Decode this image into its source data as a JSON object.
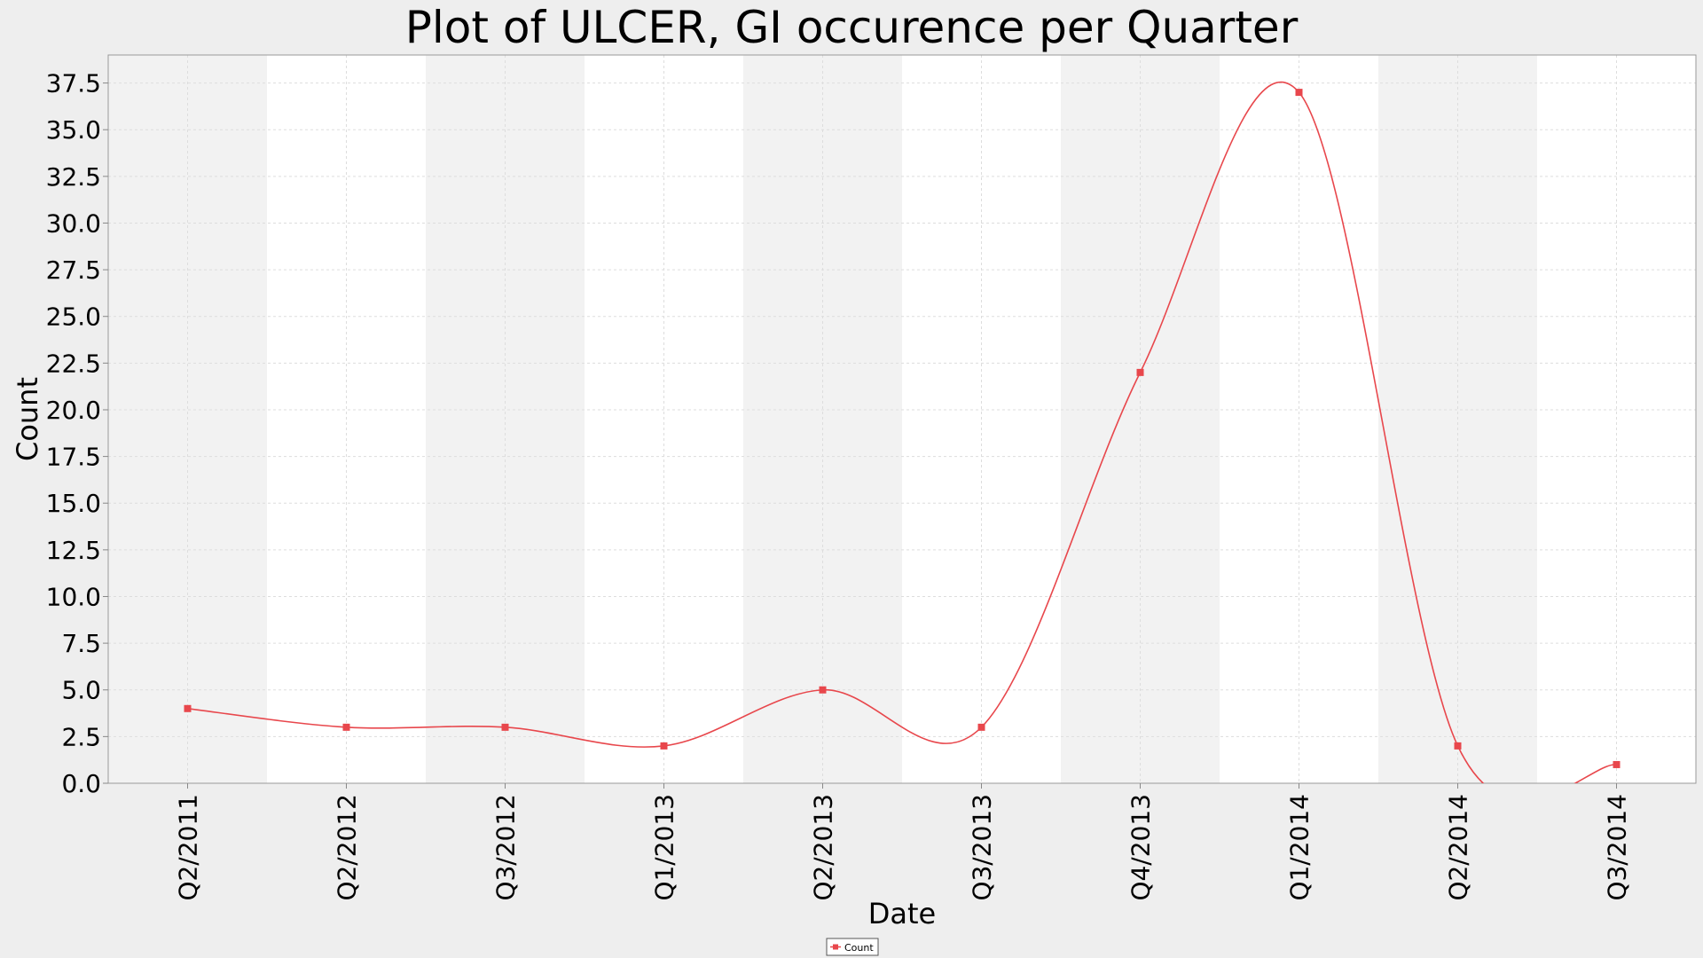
{
  "chart_data": {
    "type": "line",
    "title": "Plot of ULCER, GI occurence per Quarter",
    "xlabel": "Date",
    "ylabel": "Count",
    "categories": [
      "Q2/2011",
      "Q2/2012",
      "Q3/2012",
      "Q1/2013",
      "Q2/2013",
      "Q3/2013",
      "Q4/2013",
      "Q1/2014",
      "Q2/2014",
      "Q3/2014"
    ],
    "ylim": [
      0,
      39
    ],
    "yticks": [
      "0.0",
      "2.5",
      "5.0",
      "7.5",
      "10.0",
      "12.5",
      "15.0",
      "17.5",
      "20.0",
      "22.5",
      "25.0",
      "27.5",
      "30.0",
      "32.5",
      "35.0",
      "37.5"
    ],
    "series": [
      {
        "name": "Count",
        "values": [
          4,
          3,
          3,
          2,
          5,
          3,
          22,
          37,
          2,
          1
        ]
      }
    ],
    "smooth": true,
    "grid": true,
    "alternating_band_colors": [
      "#f2f2f2",
      "#ffffff"
    ],
    "legend_position": "bottom-center",
    "line_color": "#e8474c"
  }
}
